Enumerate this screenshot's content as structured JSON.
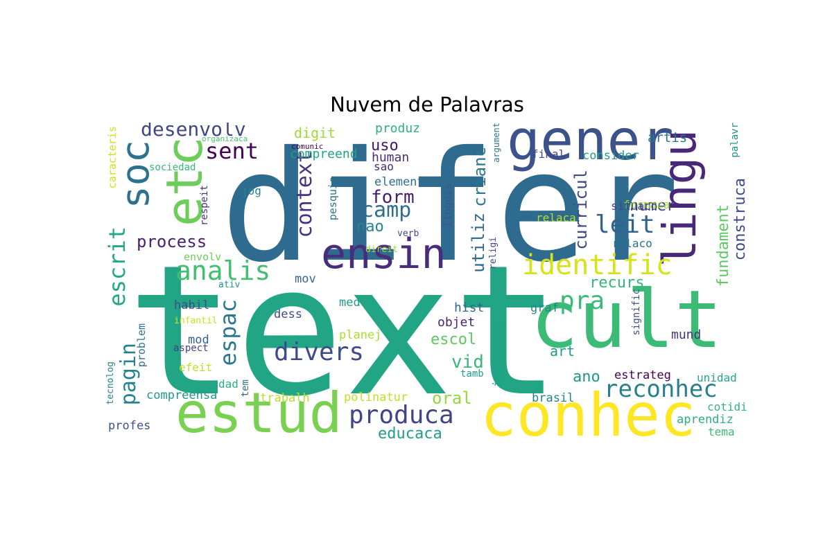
{
  "title": "Nuvem de Palavras",
  "colormap": "viridis",
  "words": [
    {
      "text": "difer",
      "color": "#2f6b8e"
    },
    {
      "text": "text",
      "color": "#21a585"
    },
    {
      "text": "cult",
      "color": "#3bbb75"
    },
    {
      "text": "conhec",
      "color": "#fde725"
    },
    {
      "text": "estud",
      "color": "#7ad151"
    },
    {
      "text": "gener",
      "color": "#3b528b"
    },
    {
      "text": "lingu",
      "color": "#482878"
    },
    {
      "text": "etc",
      "color": "#6ccd5a"
    },
    {
      "text": "soc",
      "color": "#2c728e"
    },
    {
      "text": "ensin",
      "color": "#472d7b"
    },
    {
      "text": "identific",
      "color": "#d8e219"
    },
    {
      "text": "produca",
      "color": "#414487"
    },
    {
      "text": "divers",
      "color": "#3e4a89"
    },
    {
      "text": "reconhec",
      "color": "#27808e"
    },
    {
      "text": "analis",
      "color": "#42be71"
    },
    {
      "text": "pra",
      "color": "#3aba76"
    },
    {
      "text": "context",
      "color": "#46327e"
    },
    {
      "text": "leit",
      "color": "#33638d"
    },
    {
      "text": "espac",
      "color": "#2a788e"
    },
    {
      "text": "pagin",
      "color": "#25838e"
    },
    {
      "text": "escrit",
      "color": "#22a884"
    },
    {
      "text": "camp",
      "color": "#2e6e8e"
    },
    {
      "text": "sent",
      "color": "#440154"
    },
    {
      "text": "desenvolv",
      "color": "#414487"
    },
    {
      "text": "process",
      "color": "#482173"
    },
    {
      "text": "form",
      "color": "#481b6d"
    },
    {
      "text": "escol",
      "color": "#5ec962"
    },
    {
      "text": "oral",
      "color": "#93d741"
    },
    {
      "text": "educaca",
      "color": "#1f9e89"
    },
    {
      "text": "utiliz",
      "color": "#31688e"
    },
    {
      "text": "crianc",
      "color": "#2a778e"
    },
    {
      "text": "curricul",
      "color": "#404688"
    },
    {
      "text": "construca",
      "color": "#3e4989"
    },
    {
      "text": "fundament",
      "color": "#5ec962"
    },
    {
      "text": "numer",
      "color": "#433e85"
    },
    {
      "text": "recurs",
      "color": "#35b779"
    },
    {
      "text": "vid",
      "color": "#38b977"
    },
    {
      "text": "ano",
      "color": "#1f988b"
    },
    {
      "text": "uso",
      "color": "#481467"
    },
    {
      "text": "nao",
      "color": "#25848e"
    },
    {
      "text": "compreend",
      "color": "#1fa187"
    },
    {
      "text": "human",
      "color": "#46307e"
    },
    {
      "text": "element",
      "color": "#2d708e"
    },
    {
      "text": "sao",
      "color": "#472a7a"
    },
    {
      "text": "digit",
      "color": "#a0da39"
    },
    {
      "text": "produz",
      "color": "#2db27d"
    },
    {
      "text": "artis",
      "color": "#2a768e"
    },
    {
      "text": "consider",
      "color": "#1f9a8a"
    },
    {
      "text": "final",
      "color": "#414487"
    },
    {
      "text": "formaca",
      "color": "#a5db36"
    },
    {
      "text": "situaco",
      "color": "#3f4788"
    },
    {
      "text": "relaca",
      "color": "#b5de2b"
    },
    {
      "text": "relaco",
      "color": "#2c738e"
    },
    {
      "text": "hist",
      "color": "#31668e"
    },
    {
      "text": "objet",
      "color": "#482475"
    },
    {
      "text": "mund",
      "color": "#463480"
    },
    {
      "text": "estrateg",
      "color": "#440154"
    },
    {
      "text": "unidad",
      "color": "#22a884"
    },
    {
      "text": "cotidi",
      "color": "#34b679"
    },
    {
      "text": "aprendiz",
      "color": "#2ab07f"
    },
    {
      "text": "tema",
      "color": "#3cbb75"
    },
    {
      "text": "art",
      "color": "#1e9c89"
    },
    {
      "text": "brasil",
      "color": "#26818e"
    },
    {
      "text": "graf",
      "color": "#24868e"
    },
    {
      "text": "signific",
      "color": "#3b528b"
    },
    {
      "text": "informaco",
      "color": "#1fa088"
    },
    {
      "text": "tamb",
      "color": "#1f9f88"
    },
    {
      "text": "trabalh",
      "color": "#b8de29"
    },
    {
      "text": "polinatur",
      "color": "#c2df23"
    },
    {
      "text": "planej",
      "color": "#addc30"
    },
    {
      "text": "med",
      "color": "#1f9e89"
    },
    {
      "text": "dess",
      "color": "#3e4c8a"
    },
    {
      "text": "mov",
      "color": "#31678e"
    },
    {
      "text": "envolv",
      "color": "#6ece58"
    },
    {
      "text": "habil",
      "color": "#3f4889"
    },
    {
      "text": "infantil",
      "color": "#cde11d"
    },
    {
      "text": "aspect",
      "color": "#423f85"
    },
    {
      "text": "mod",
      "color": "#33628d"
    },
    {
      "text": "efeit",
      "color": "#c0df25"
    },
    {
      "text": "dad",
      "color": "#2ab07f"
    },
    {
      "text": "tem",
      "color": "#2d708e"
    },
    {
      "text": "compreensa",
      "color": "#1f968b"
    },
    {
      "text": "profes",
      "color": "#3b528b"
    },
    {
      "text": "tecnolog",
      "color": "#26818e"
    },
    {
      "text": "problem",
      "color": "#2c728e"
    },
    {
      "text": "caracteris",
      "color": "#d0e11c"
    },
    {
      "text": "sociedad",
      "color": "#35b779"
    },
    {
      "text": "organizaca",
      "color": "#4ac16d"
    },
    {
      "text": "comunic",
      "color": "#440154"
    },
    {
      "text": "respeit",
      "color": "#472f7d"
    },
    {
      "text": "jog",
      "color": "#25848e"
    },
    {
      "text": "pesquis",
      "color": "#2b748e"
    },
    {
      "text": "verb",
      "color": "#3d4e8a"
    },
    {
      "text": "direit",
      "color": "#9fda3a"
    },
    {
      "text": "ativ",
      "color": "#1f958b"
    },
    {
      "text": "linguis",
      "color": "#39568c"
    },
    {
      "text": "religi",
      "color": "#3f4788"
    },
    {
      "text": "argument",
      "color": "#2a788e"
    },
    {
      "text": "palavr",
      "color": "#21918c"
    }
  ]
}
